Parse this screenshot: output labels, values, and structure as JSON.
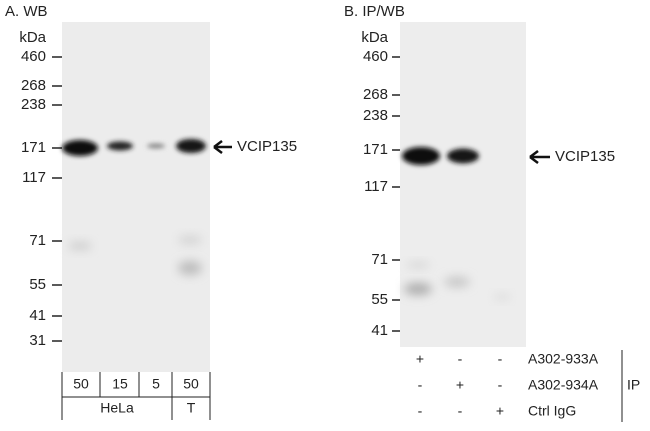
{
  "panels": [
    {
      "title": "A. WB",
      "unit": "kDa",
      "markers": [
        "460",
        "268",
        "238",
        "171",
        "117",
        "71",
        "55",
        "41",
        "31"
      ],
      "target": "VCIP135",
      "lanes": [
        "50",
        "15",
        "5",
        "50"
      ],
      "groups": [
        "HeLa",
        "T"
      ]
    },
    {
      "title": "B. IP/WB",
      "unit": "kDa",
      "markers": [
        "460",
        "268",
        "238",
        "171",
        "117",
        "71",
        "55",
        "41"
      ],
      "target": "VCIP135",
      "conditions": [
        {
          "name": "A302-933A",
          "signs": [
            "+",
            "-",
            "-"
          ]
        },
        {
          "name": "A302-934A",
          "signs": [
            "-",
            "+",
            "-"
          ]
        },
        {
          "name": "Ctrl IgG",
          "signs": [
            "-",
            "-",
            "+"
          ]
        }
      ],
      "ip_label": "IP"
    }
  ]
}
